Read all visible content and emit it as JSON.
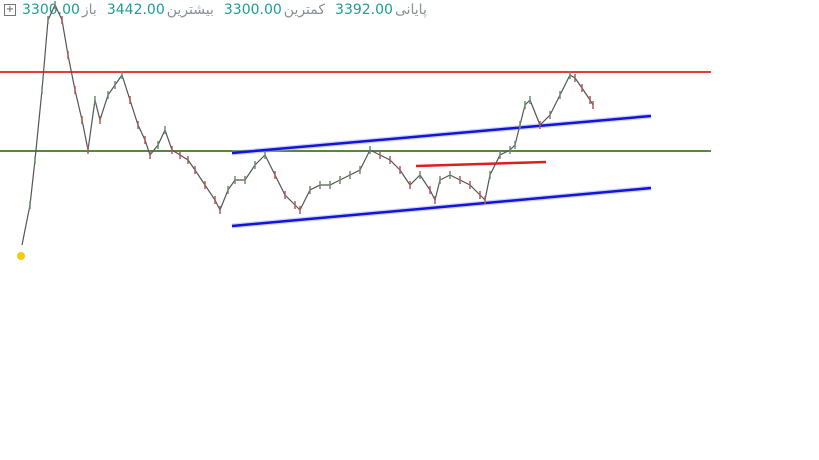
{
  "chart_data": {
    "type": "line",
    "header": [
      {
        "label": "باز",
        "value": "3300.00"
      },
      {
        "label": "بیشترین",
        "value": "3442.00"
      },
      {
        "label": "کمترین",
        "value": "3300.00"
      },
      {
        "label": "پایانی",
        "value": "3392.00"
      }
    ],
    "xlim": [
      0,
      819
    ],
    "ylim": [
      2670,
      3590
    ],
    "series": [
      {
        "color": "#555555",
        "x": [
          22,
          30,
          35,
          42,
          48,
          55,
          62,
          68,
          75,
          82,
          88,
          95,
          100,
          108,
          115,
          122,
          130,
          138,
          145,
          150,
          158,
          165,
          172,
          180,
          188,
          195,
          205,
          215,
          220,
          228,
          235,
          245,
          255,
          265,
          275,
          285,
          295,
          300,
          310,
          320,
          330,
          340,
          350,
          360,
          370,
          380,
          390,
          400,
          410,
          420,
          430,
          435,
          440,
          450,
          460,
          470,
          480,
          485,
          490,
          500,
          510,
          515,
          520,
          525,
          530,
          540,
          550,
          560,
          570,
          575,
          582,
          590,
          593
        ],
        "values": [
          3100,
          3180,
          3270,
          3410,
          3550,
          3580,
          3550,
          3480,
          3410,
          3350,
          3290,
          3390,
          3350,
          3400,
          3420,
          3440,
          3390,
          3340,
          3310,
          3280,
          3300,
          3330,
          3290,
          3280,
          3270,
          3250,
          3220,
          3190,
          3170,
          3210,
          3230,
          3230,
          3260,
          3280,
          3240,
          3200,
          3180,
          3170,
          3210,
          3220,
          3220,
          3230,
          3240,
          3250,
          3290,
          3280,
          3270,
          3250,
          3220,
          3240,
          3210,
          3190,
          3230,
          3240,
          3230,
          3220,
          3200,
          3190,
          3240,
          3280,
          3290,
          3300,
          3340,
          3380,
          3390,
          3340,
          3360,
          3400,
          3440,
          3434,
          3414,
          3390,
          3380
        ]
      }
    ],
    "drawings": [
      {
        "color": "#e01e1e",
        "x": [
          0,
          711
        ],
        "y": [
          3446,
          3446
        ]
      },
      {
        "color": "#3d7a1f",
        "x": [
          0,
          711
        ],
        "y": [
          3288,
          3288
        ]
      },
      {
        "color": "#1414d8",
        "x": [
          232,
          651
        ],
        "y": [
          3284,
          3358
        ]
      },
      {
        "color": "#1414d8",
        "x": [
          232,
          651
        ],
        "y": [
          3138,
          3214
        ]
      },
      {
        "color": "#e01e1e",
        "x": [
          416,
          546
        ],
        "y": [
          3258,
          3266
        ]
      }
    ],
    "marker": {
      "color": "#f2cc0c",
      "x": 21,
      "y": 3078
    }
  }
}
